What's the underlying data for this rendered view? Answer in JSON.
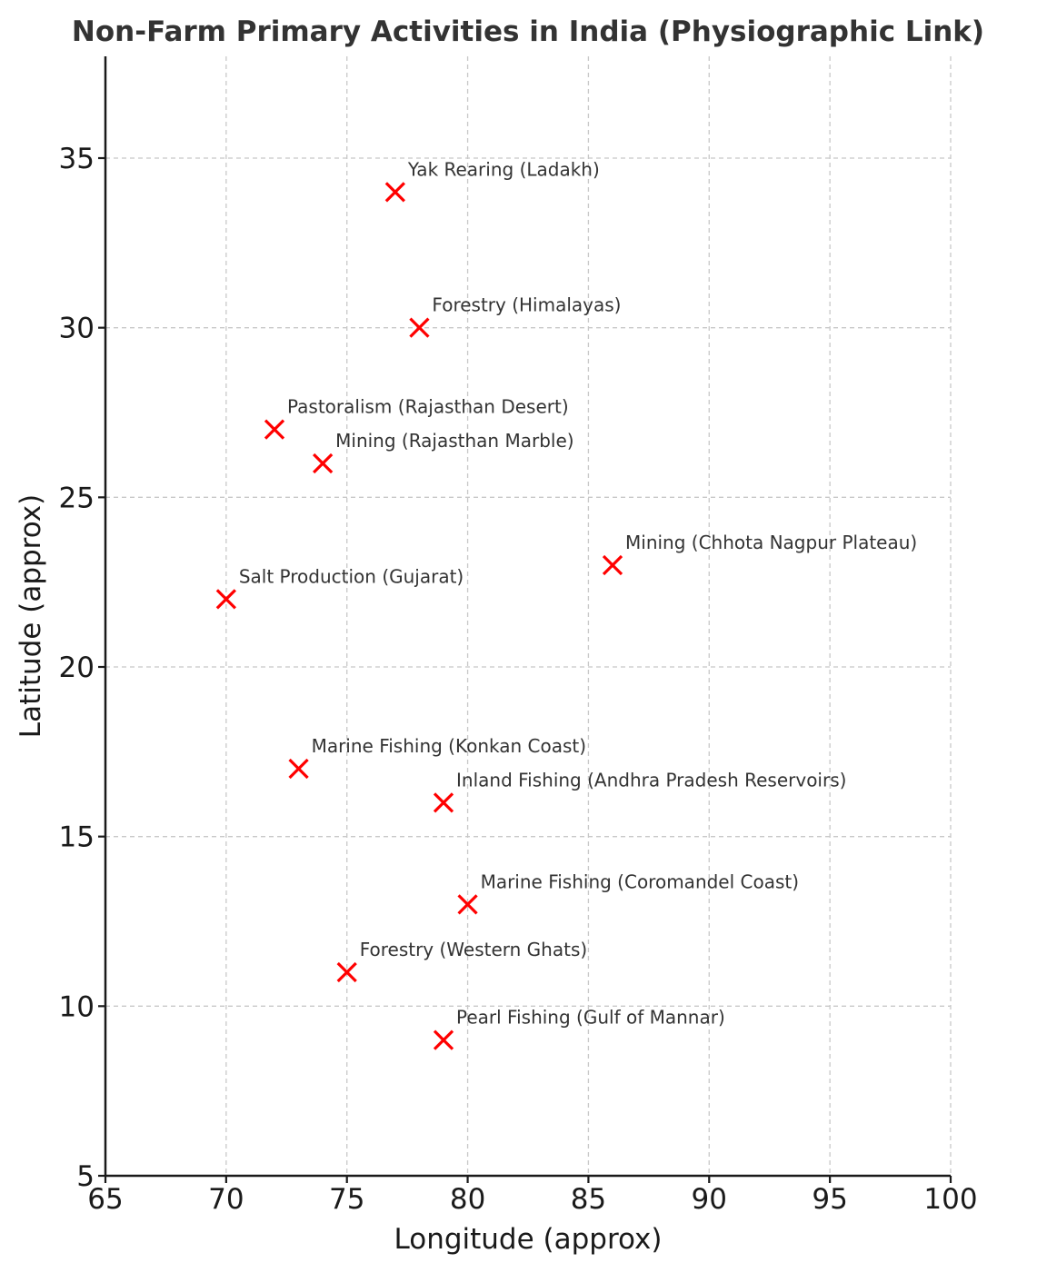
{
  "chart_data": {
    "type": "scatter",
    "title": "Non-Farm Primary Activities in India (Physiographic Link)",
    "xlabel": "Longitude (approx)",
    "ylabel": "Latitude (approx)",
    "xlim": [
      65,
      100
    ],
    "ylim": [
      5,
      38
    ],
    "xticks": [
      65,
      70,
      75,
      80,
      85,
      90,
      95,
      100
    ],
    "yticks": [
      5,
      10,
      15,
      20,
      25,
      30,
      35
    ],
    "grid": true,
    "marker": "x",
    "marker_color": "#ff0000",
    "points": [
      {
        "label": "Yak Rearing (Ladakh)",
        "x": 77,
        "y": 34
      },
      {
        "label": "Forestry (Himalayas)",
        "x": 78,
        "y": 30
      },
      {
        "label": "Pastoralism (Rajasthan Desert)",
        "x": 72,
        "y": 27
      },
      {
        "label": "Mining (Rajasthan Marble)",
        "x": 74,
        "y": 26
      },
      {
        "label": "Mining (Chhota Nagpur Plateau)",
        "x": 86,
        "y": 23
      },
      {
        "label": "Salt Production (Gujarat)",
        "x": 70,
        "y": 22
      },
      {
        "label": "Marine Fishing (Konkan Coast)",
        "x": 73,
        "y": 17
      },
      {
        "label": "Inland Fishing (Andhra Pradesh Reservoirs)",
        "x": 79,
        "y": 16
      },
      {
        "label": "Marine Fishing (Coromandel Coast)",
        "x": 80,
        "y": 13
      },
      {
        "label": "Forestry (Western Ghats)",
        "x": 75,
        "y": 11
      },
      {
        "label": "Pearl Fishing (Gulf of Mannar)",
        "x": 79,
        "y": 9
      }
    ]
  }
}
